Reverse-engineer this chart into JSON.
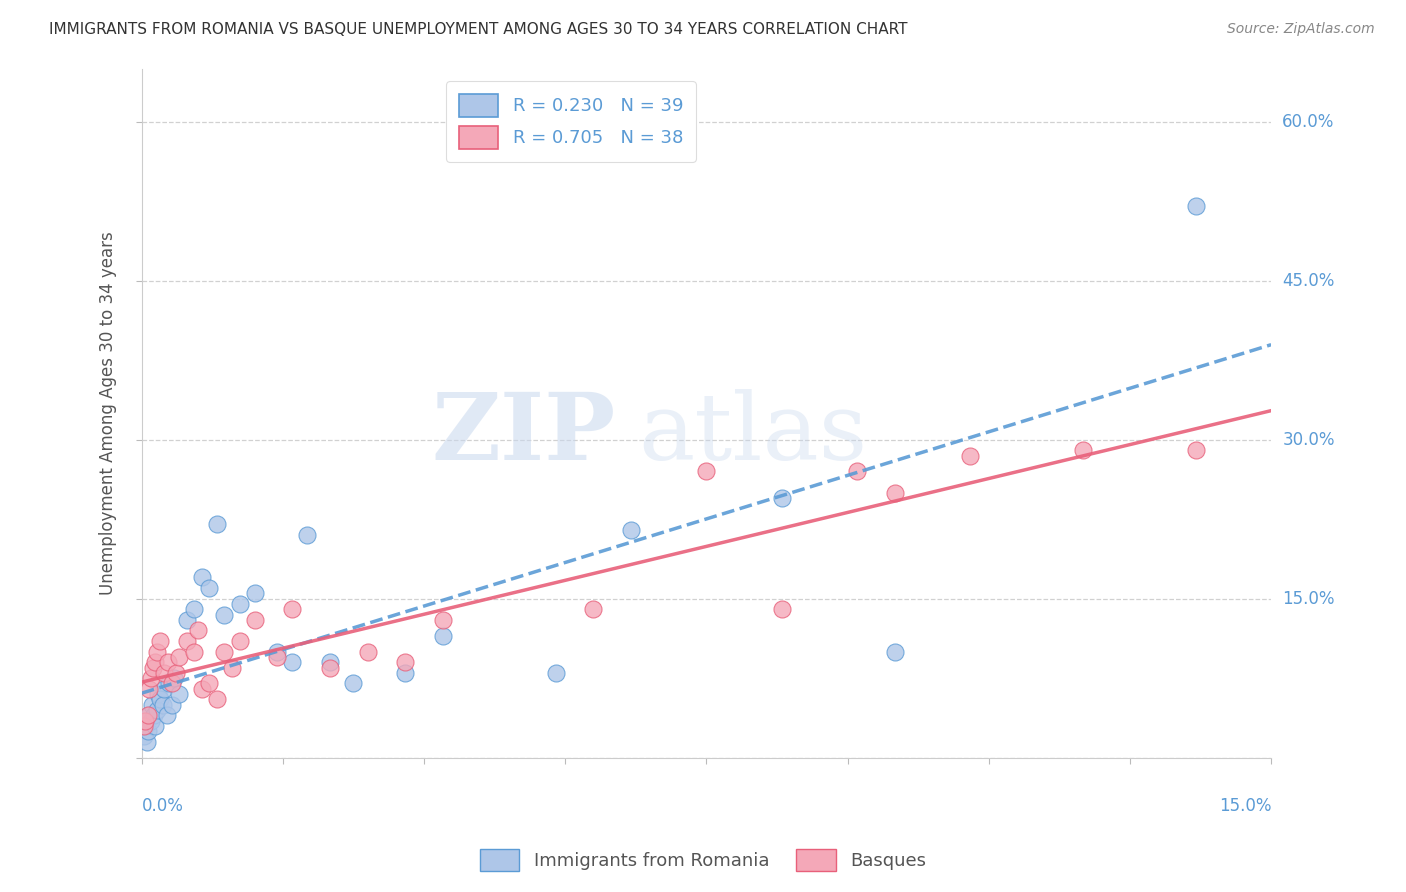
{
  "title": "IMMIGRANTS FROM ROMANIA VS BASQUE UNEMPLOYMENT AMONG AGES 30 TO 34 YEARS CORRELATION CHART",
  "source": "Source: ZipAtlas.com",
  "ylabel": "Unemployment Among Ages 30 to 34 years",
  "legend_label_romania": "Immigrants from Romania",
  "legend_label_basque": "Basques",
  "watermark_zip": "ZIP",
  "watermark_atlas": "atlas",
  "title_color": "#333333",
  "axis_label_color": "#5b9bd5",
  "romania_color": "#aec6e8",
  "basque_color": "#f4a8b8",
  "romania_line_color": "#5b9bd5",
  "basque_line_color": "#e8607a",
  "romania_R": 0.23,
  "romania_N": 39,
  "basque_R": 0.705,
  "basque_N": 38,
  "xmin": 0.0,
  "xmax": 0.15,
  "ymin": 0.0,
  "ymax": 0.65,
  "yticks": [
    0.0,
    0.15,
    0.3,
    0.45,
    0.6
  ],
  "ytick_labels": [
    "",
    "15.0%",
    "30.0%",
    "45.0%",
    "60.0%"
  ],
  "romania_x": [
    0.0003,
    0.0005,
    0.0007,
    0.0009,
    0.001,
    0.0012,
    0.0014,
    0.0016,
    0.0018,
    0.002,
    0.0022,
    0.0025,
    0.0028,
    0.003,
    0.0033,
    0.0036,
    0.004,
    0.0043,
    0.005,
    0.006,
    0.007,
    0.008,
    0.009,
    0.01,
    0.011,
    0.013,
    0.015,
    0.018,
    0.02,
    0.022,
    0.025,
    0.028,
    0.035,
    0.04,
    0.055,
    0.065,
    0.085,
    0.1,
    0.14
  ],
  "romania_y": [
    0.02,
    0.03,
    0.015,
    0.025,
    0.04,
    0.035,
    0.05,
    0.04,
    0.03,
    0.045,
    0.06,
    0.055,
    0.05,
    0.065,
    0.04,
    0.07,
    0.05,
    0.075,
    0.06,
    0.13,
    0.14,
    0.17,
    0.16,
    0.22,
    0.135,
    0.145,
    0.155,
    0.1,
    0.09,
    0.21,
    0.09,
    0.07,
    0.08,
    0.115,
    0.08,
    0.215,
    0.245,
    0.1,
    0.52
  ],
  "basque_x": [
    0.0003,
    0.0005,
    0.0008,
    0.001,
    0.0012,
    0.0015,
    0.0018,
    0.002,
    0.0025,
    0.003,
    0.0035,
    0.004,
    0.0045,
    0.005,
    0.006,
    0.007,
    0.0075,
    0.008,
    0.009,
    0.01,
    0.011,
    0.012,
    0.013,
    0.015,
    0.018,
    0.02,
    0.025,
    0.03,
    0.035,
    0.04,
    0.06,
    0.075,
    0.085,
    0.095,
    0.1,
    0.11,
    0.125,
    0.14
  ],
  "basque_y": [
    0.03,
    0.035,
    0.04,
    0.065,
    0.075,
    0.085,
    0.09,
    0.1,
    0.11,
    0.08,
    0.09,
    0.07,
    0.08,
    0.095,
    0.11,
    0.1,
    0.12,
    0.065,
    0.07,
    0.055,
    0.1,
    0.085,
    0.11,
    0.13,
    0.095,
    0.14,
    0.085,
    0.1,
    0.09,
    0.13,
    0.14,
    0.27,
    0.14,
    0.27,
    0.25,
    0.285,
    0.29,
    0.29
  ]
}
